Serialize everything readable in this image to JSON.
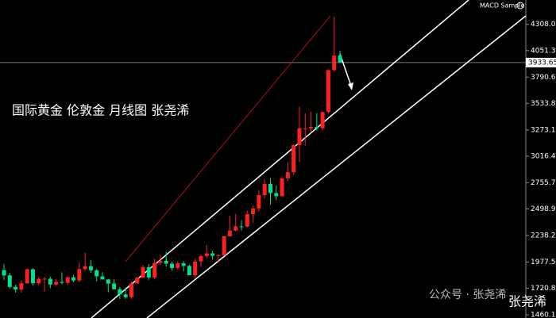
{
  "chart_data": {
    "type": "candlestick",
    "annotation": "国际黄金 伦敦金 月线图 张尧浠",
    "indicator_label": "MACD Sample",
    "watermark": "公众号 · 张尧浠",
    "watermark_logo": "张尧浠",
    "up_color": "#ff2020",
    "down_color": "#00e090",
    "last_price": 3933.65,
    "open": [
      1898,
      1847,
      1734,
      1708,
      1769,
      1907,
      1770,
      1814,
      1814,
      1757,
      1783,
      1774,
      1829,
      1797,
      1909,
      1937,
      1897,
      1837,
      1807,
      1766,
      1711,
      1660,
      1633,
      1768,
      1824,
      1928,
      1826,
      1969,
      1990,
      1962,
      1919,
      1965,
      1940,
      1849,
      1983,
      2036,
      2063,
      2039,
      2044,
      2230,
      2286,
      2327,
      2326,
      2447,
      2503,
      2634,
      2743,
      2654,
      2624,
      2798,
      2858,
      3124,
      3289,
      3289,
      3303,
      3290,
      3448,
      3859,
      4002
    ],
    "high": [
      1959,
      1871,
      1755,
      1798,
      1913,
      1917,
      1832,
      1832,
      1834,
      1814,
      1877,
      1831,
      1853,
      1974,
      2070,
      1998,
      1910,
      1879,
      1814,
      1808,
      1735,
      1730,
      1786,
      1833,
      1949,
      1959,
      2009,
      2048,
      2079,
      1983,
      1987,
      1987,
      1953,
      2009,
      2052,
      2146,
      2088,
      2050,
      2236,
      2431,
      2450,
      2387,
      2483,
      2531,
      2685,
      2790,
      2801,
      2726,
      2817,
      2956,
      3128,
      3500,
      3435,
      3452,
      3439,
      3453,
      3870,
      4381,
      4050
    ],
    "low": [
      1802,
      1717,
      1677,
      1678,
      1765,
      1750,
      1751,
      1688,
      1721,
      1746,
      1759,
      1753,
      1780,
      1781,
      1890,
      1872,
      1787,
      1805,
      1681,
      1709,
      1615,
      1617,
      1616,
      1765,
      1824,
      1804,
      1810,
      1950,
      1932,
      1893,
      1903,
      1885,
      1846,
      1810,
      1931,
      2017,
      2001,
      1984,
      2039,
      2228,
      2277,
      2286,
      2318,
      2364,
      2471,
      2603,
      2536,
      2583,
      2614,
      2772,
      2833,
      2957,
      3120,
      3247,
      3268,
      3268,
      3436,
      3850,
      3930
    ],
    "close": [
      1847,
      1734,
      1708,
      1769,
      1907,
      1770,
      1814,
      1814,
      1757,
      1783,
      1774,
      1829,
      1797,
      1909,
      1937,
      1897,
      1837,
      1807,
      1766,
      1711,
      1660,
      1633,
      1768,
      1824,
      1928,
      1826,
      1969,
      1990,
      1962,
      1919,
      1965,
      1940,
      1849,
      1983,
      2036,
      2063,
      2039,
      2044,
      2230,
      2286,
      2327,
      2326,
      2447,
      2503,
      2634,
      2743,
      2654,
      2624,
      2798,
      2858,
      3124,
      3289,
      3289,
      3303,
      3290,
      3448,
      3859,
      4002,
      3934
    ],
    "ylim": [
      1429,
      4547
    ],
    "yticks": [
      4308.05,
      {
        "value": 4051.3,
        "label": "4051.30"
      },
      {
        "value": 3790.6,
        "label": "3790.60"
      },
      3533.85,
      3273.15,
      {
        "value": 3016.4,
        "label": "3016.40"
      },
      {
        "value": 2755.7,
        "label": "2755.70"
      },
      2498.95,
      2238.25,
      1977.55,
      {
        "value": 1720.8,
        "label": "1720.80"
      },
      {
        "value": 1460.1,
        "label": "1460.10"
      }
    ]
  }
}
